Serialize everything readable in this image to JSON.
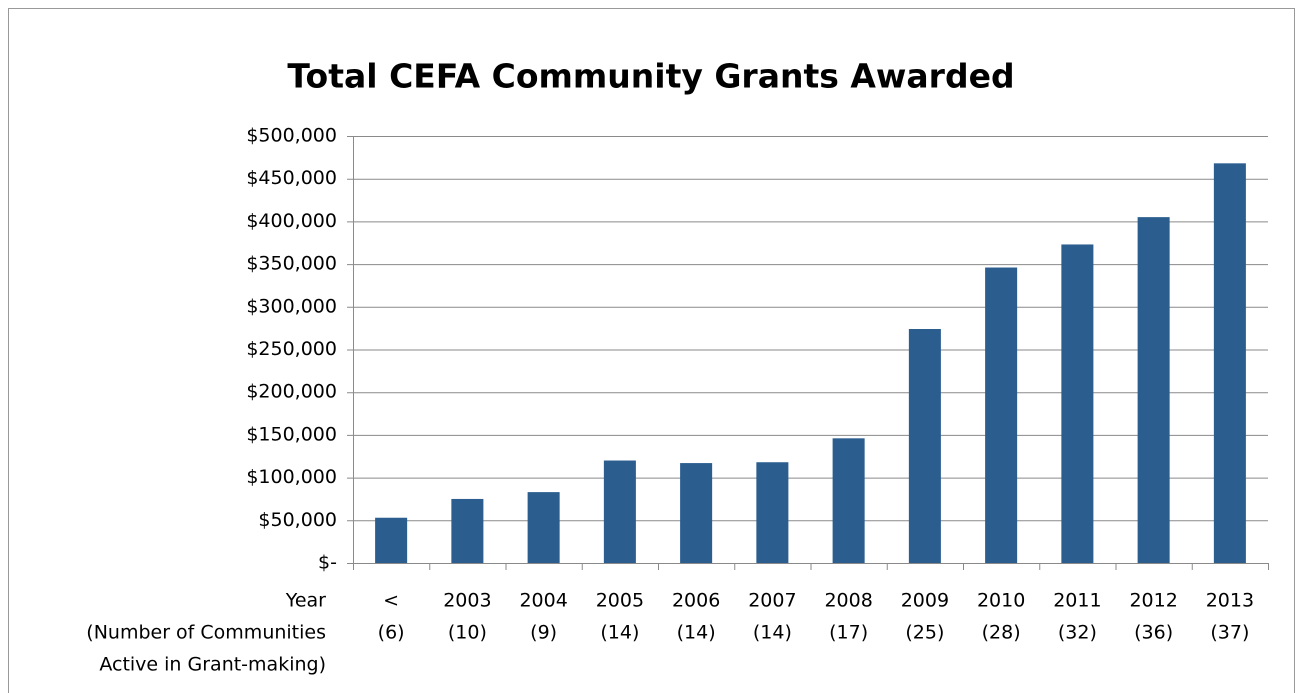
{
  "chart_data": {
    "type": "bar",
    "title": "Total CEFA Community Grants Awarded",
    "x_label": [
      "Year",
      "(Number of Communities",
      "Active in Grant-making)"
    ],
    "categories": [
      [
        "<",
        "(6)"
      ],
      [
        "2003",
        "(10)"
      ],
      [
        "2004",
        "(9)"
      ],
      [
        "2005",
        "(14)"
      ],
      [
        "2006",
        "(14)"
      ],
      [
        "2007",
        "(14)"
      ],
      [
        "2008",
        "(17)"
      ],
      [
        "2009",
        "(25)"
      ],
      [
        "2010",
        "(28)"
      ],
      [
        "2011",
        "(32)"
      ],
      [
        "2012",
        "(36)"
      ],
      [
        "2013",
        "(37)"
      ]
    ],
    "values": [
      53000,
      75000,
      83000,
      120000,
      117000,
      118000,
      146000,
      274000,
      346000,
      373000,
      405000,
      468000
    ],
    "color": "#2b5d8f",
    "ylim": [
      0,
      500000
    ],
    "yticks": [
      {
        "value": 0,
        "label": "$-"
      },
      {
        "value": 50000,
        "label": "$50,000"
      },
      {
        "value": 100000,
        "label": "$100,000"
      },
      {
        "value": 150000,
        "label": "$150,000"
      },
      {
        "value": 200000,
        "label": "$200,000"
      },
      {
        "value": 250000,
        "label": "$250,000"
      },
      {
        "value": 300000,
        "label": "$300,000"
      },
      {
        "value": 350000,
        "label": "$350,000"
      },
      {
        "value": 400000,
        "label": "$400,000"
      },
      {
        "value": 450000,
        "label": "$450,000"
      },
      {
        "value": 500000,
        "label": "$500,000"
      }
    ],
    "grid": true
  }
}
